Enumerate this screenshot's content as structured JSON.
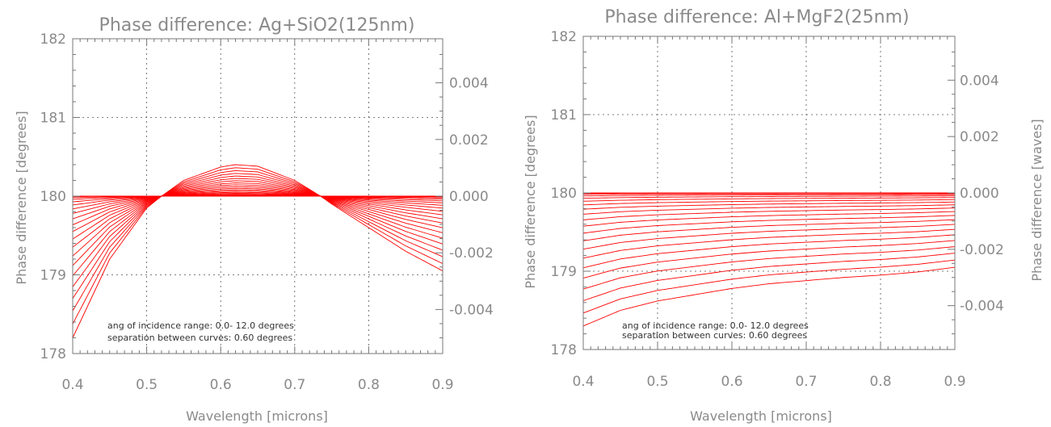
{
  "chart_data": [
    {
      "type": "line",
      "title": "Phase difference: Ag+SiO2(125nm)",
      "xlabel": "Wavelength [microns]",
      "ylabel": "Phase difference [degrees]",
      "y2label": "",
      "xlim": [
        0.4,
        0.9
      ],
      "ylim": [
        178,
        182
      ],
      "y2lim": [
        -0.0055556,
        0.0055556
      ],
      "x_ticks": [
        "0.4",
        "0.5",
        "0.6",
        "0.7",
        "0.8",
        "0.9"
      ],
      "y_ticks": [
        "178",
        "179",
        "180",
        "181",
        "182"
      ],
      "y2_ticks": [
        "-0.004",
        "-0.002",
        "0.000",
        "0.002",
        "0.004"
      ],
      "grid": true,
      "annotations": [
        "ang of incidence range: 0.0- 12.0 degrees",
        "separation between curves: 0.60 degrees"
      ],
      "angle_range": [
        0.0,
        12.0
      ],
      "angle_step": 0.6,
      "n_curves": 21,
      "series_color": "#ff0000",
      "extreme_curve": {
        "x": [
          0.4,
          0.45,
          0.5,
          0.52,
          0.55,
          0.6,
          0.62,
          0.65,
          0.7,
          0.735,
          0.75,
          0.8,
          0.85,
          0.9
        ],
        "y": [
          178.2,
          179.2,
          179.85,
          180.0,
          180.2,
          180.37,
          180.4,
          180.38,
          180.2,
          180.0,
          179.9,
          179.6,
          179.3,
          179.05
        ]
      },
      "curve_model": "y(theta) = 180 + (theta/12)^2 * (extreme - 180)"
    },
    {
      "type": "line",
      "title": "Phase difference: Al+MgF2(25nm)",
      "xlabel": "Wavelength [microns]",
      "ylabel": "Phase difference [degrees]",
      "y2label": "Phase difference [waves]",
      "xlim": [
        0.4,
        0.9
      ],
      "ylim": [
        178,
        182
      ],
      "y2lim": [
        -0.0055556,
        0.0055556
      ],
      "x_ticks": [
        "0.4",
        "0.5",
        "0.6",
        "0.7",
        "0.8",
        "0.9"
      ],
      "y_ticks": [
        "178",
        "179",
        "180",
        "181",
        "182"
      ],
      "y2_ticks": [
        "-0.004",
        "-0.002",
        "0.000",
        "0.002",
        "0.004"
      ],
      "grid": true,
      "annotations": [
        "ang of incidence range: 0.0- 12.0 degrees",
        "separation between curves: 0.60 degrees"
      ],
      "angle_range": [
        0.0,
        12.0
      ],
      "angle_step": 0.6,
      "n_curves": 21,
      "series_color": "#ff0000",
      "extreme_curve": {
        "x": [
          0.4,
          0.45,
          0.5,
          0.55,
          0.6,
          0.65,
          0.7,
          0.75,
          0.8,
          0.85,
          0.9
        ],
        "y": [
          178.3,
          178.5,
          178.62,
          178.7,
          178.78,
          178.84,
          178.88,
          178.92,
          178.95,
          178.99,
          179.05
        ]
      },
      "curve_model": "y(theta) = 180 + (theta/12)^2 * (extreme - 180)"
    }
  ]
}
